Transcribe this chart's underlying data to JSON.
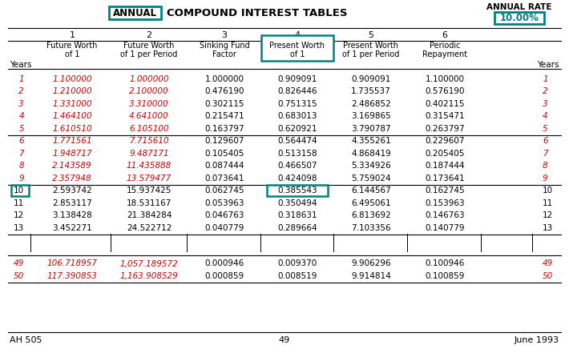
{
  "title_left": "ANNUAL",
  "title_mid": "COMPOUND INTEREST TABLES",
  "title_rate_label": "ANNUAL RATE",
  "title_rate_value": "10.00%",
  "col_numbers": [
    "1",
    "2",
    "3",
    "4",
    "5",
    "6"
  ],
  "col_headers": [
    [
      "Future Worth",
      "of 1"
    ],
    [
      "Future Worth",
      "of 1 per Period"
    ],
    [
      "Sinking Fund",
      "Factor"
    ],
    [
      "Present Worth",
      "of 1"
    ],
    [
      "Present Worth",
      "of 1 per Period"
    ],
    [
      "Periodic",
      "Repayment"
    ]
  ],
  "years_label": "Years",
  "rows": [
    [
      1,
      "1.100000",
      "1.000000",
      "1.000000",
      "0.909091",
      "0.909091",
      "1.100000"
    ],
    [
      2,
      "1.210000",
      "2.100000",
      "0.476190",
      "0.826446",
      "1.735537",
      "0.576190"
    ],
    [
      3,
      "1.331000",
      "3.310000",
      "0.302115",
      "0.751315",
      "2.486852",
      "0.402115"
    ],
    [
      4,
      "1.464100",
      "4.641000",
      "0.215471",
      "0.683013",
      "3.169865",
      "0.315471"
    ],
    [
      5,
      "1.610510",
      "6.105100",
      "0.163797",
      "0.620921",
      "3.790787",
      "0.263797"
    ],
    [
      6,
      "1.771561",
      "7.715610",
      "0.129607",
      "0.564474",
      "4.355261",
      "0.229607"
    ],
    [
      7,
      "1.948717",
      "9.487171",
      "0.105405",
      "0.513158",
      "4.868419",
      "0.205405"
    ],
    [
      8,
      "2.143589",
      "11.435888",
      "0.087444",
      "0.466507",
      "5.334926",
      "0.187444"
    ],
    [
      9,
      "2.357948",
      "13.579477",
      "0.073641",
      "0.424098",
      "5.759024",
      "0.173641"
    ],
    [
      10,
      "2.593742",
      "15.937425",
      "0.062745",
      "0.385543",
      "6.144567",
      "0.162745"
    ],
    [
      11,
      "2.853117",
      "18.531167",
      "0.053963",
      "0.350494",
      "6.495061",
      "0.153963"
    ],
    [
      12,
      "3.138428",
      "21.384284",
      "0.046763",
      "0.318631",
      "6.813692",
      "0.146763"
    ],
    [
      13,
      "3.452271",
      "24.522712",
      "0.040779",
      "0.289664",
      "7.103356",
      "0.140779"
    ],
    [
      49,
      "106.718957",
      "1,057.189572",
      "0.000946",
      "0.009370",
      "9.906296",
      "0.100946"
    ],
    [
      50,
      "117.390853",
      "1,163.908529",
      "0.000859",
      "0.008519",
      "9.914814",
      "0.100859"
    ]
  ],
  "highlight_row": 10,
  "highlight_col_idx": 3,
  "footer_left": "AH 505",
  "footer_mid": "49",
  "footer_right": "June 1993",
  "teal": "#008080",
  "red": "#CC0000",
  "black": "#000000",
  "bg": "#FFFFFF",
  "hline_after_rows": [
    5,
    9,
    13
  ],
  "red_italic_rows": [
    1,
    2,
    3,
    4,
    5,
    6,
    7,
    8,
    9,
    49,
    50
  ],
  "red_italic_cols": [
    0,
    1
  ]
}
